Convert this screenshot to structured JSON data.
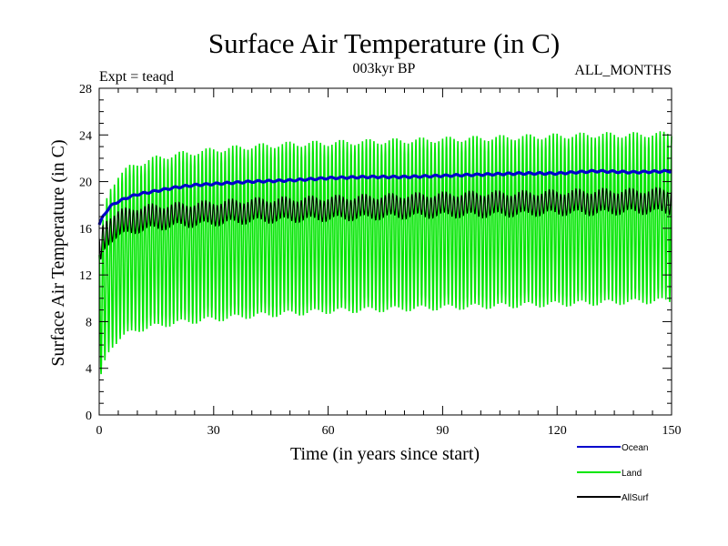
{
  "chart_data": {
    "type": "line",
    "title": "Surface Air Temperature (in C)",
    "subtitle": "003kyr BP",
    "annotation_left": "Expt = teaqd",
    "annotation_right": "ALL_MONTHS",
    "xlabel": "Time (in years since start)",
    "ylabel": "Surface Air Temperature (in C)",
    "xlim": [
      0,
      150
    ],
    "ylim": [
      0,
      28
    ],
    "xticks": [
      0,
      30,
      60,
      90,
      120,
      150
    ],
    "yticks": [
      0,
      4,
      8,
      12,
      16,
      20,
      24,
      28
    ],
    "x_minor_step": 5,
    "y_minor_step": 1,
    "legend_position": "bottom-right",
    "series": [
      {
        "name": "Ocean",
        "color": "#0000cc",
        "x": [
          0,
          1,
          2,
          3,
          5,
          8,
          10,
          15,
          20,
          25,
          30,
          40,
          50,
          60,
          70,
          80,
          90,
          100,
          110,
          120,
          130,
          140,
          150
        ],
        "values": [
          16.3,
          17.0,
          17.5,
          17.9,
          18.3,
          18.7,
          18.9,
          19.2,
          19.5,
          19.7,
          19.8,
          20.0,
          20.1,
          20.3,
          20.4,
          20.4,
          20.5,
          20.6,
          20.7,
          20.7,
          20.9,
          20.8,
          20.9
        ]
      },
      {
        "name": "Land",
        "color": "#00e600",
        "seasonal_cycle": true,
        "x": [
          0,
          1,
          2,
          3,
          5,
          8,
          10,
          15,
          20,
          30,
          40,
          50,
          60,
          70,
          80,
          90,
          100,
          110,
          120,
          130,
          140,
          150
        ],
        "max_values": [
          13.5,
          16.5,
          18.5,
          19.5,
          20.5,
          21.2,
          21.5,
          22.0,
          22.3,
          22.7,
          23.0,
          23.2,
          23.3,
          23.4,
          23.5,
          23.6,
          23.7,
          23.8,
          23.9,
          24.0,
          24.0,
          24.1
        ],
        "min_values": [
          2.5,
          4.0,
          5.0,
          5.8,
          6.5,
          7.0,
          7.3,
          7.6,
          7.9,
          8.2,
          8.5,
          8.7,
          8.9,
          9.0,
          9.1,
          9.2,
          9.3,
          9.4,
          9.5,
          9.6,
          9.7,
          9.8
        ]
      },
      {
        "name": "AllSurf",
        "color": "#000000",
        "seasonal_cycle": true,
        "x": [
          0,
          1,
          2,
          3,
          5,
          8,
          10,
          15,
          20,
          30,
          40,
          50,
          60,
          70,
          80,
          90,
          100,
          110,
          120,
          130,
          140,
          150
        ],
        "max_values": [
          15.0,
          16.2,
          16.8,
          17.1,
          17.4,
          17.6,
          17.8,
          17.9,
          18.0,
          18.2,
          18.4,
          18.5,
          18.6,
          18.7,
          18.8,
          18.9,
          19.0,
          19.0,
          19.1,
          19.2,
          19.2,
          19.3
        ],
        "min_values": [
          12.5,
          14.0,
          14.6,
          15.0,
          15.3,
          15.6,
          15.8,
          16.0,
          16.2,
          16.4,
          16.6,
          16.7,
          16.8,
          16.9,
          17.0,
          17.1,
          17.1,
          17.2,
          17.3,
          17.3,
          17.4,
          17.4
        ]
      }
    ]
  }
}
